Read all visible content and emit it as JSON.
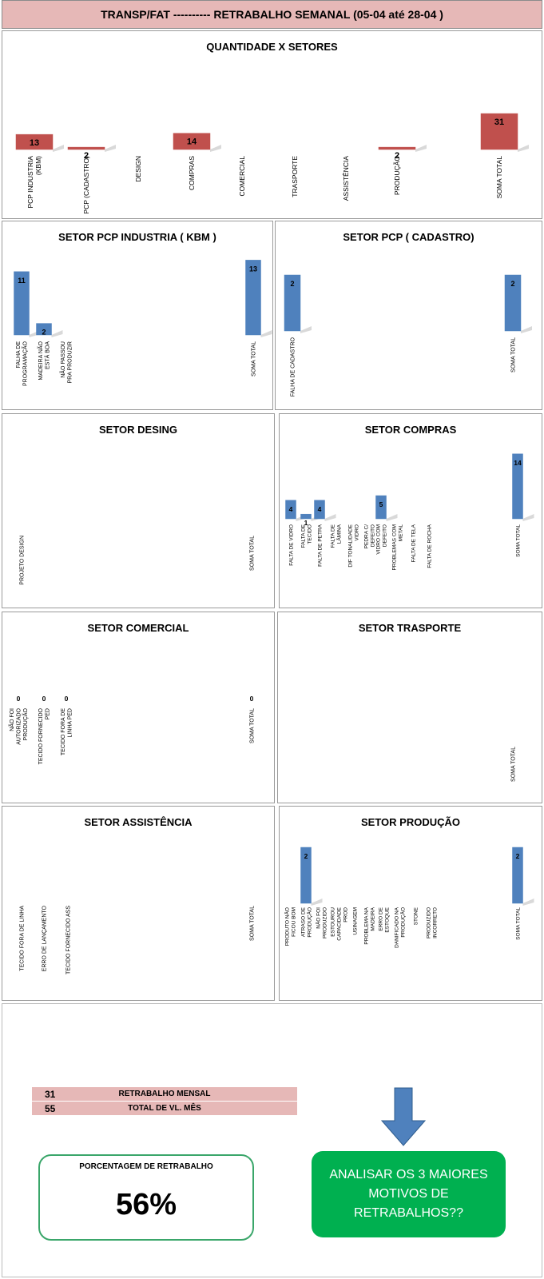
{
  "header": {
    "title": "TRANSP/FAT ----------   RETRABALHO SEMANAL (05-04 até 28-04 )"
  },
  "colors": {
    "red_bar": "#c0504d",
    "blue_bar": "#4f81bd",
    "header_bg": "#e6b8b7",
    "green_box": "#00b050",
    "arrow": "#4f81bd"
  },
  "chart_data": [
    {
      "type": "bar",
      "title": "QUANTIDADE X SETORES",
      "categories": [
        "PCP INDUSTRIA (KBM)",
        "PCP (CADASTRO)",
        "DESIGN",
        "COMPRAS",
        "COMERCIAL",
        "TRASPORTE",
        "ASSISTÊNCIA",
        "PRODUÇÃO",
        "SOMA TOTAL"
      ],
      "values": [
        13,
        2,
        null,
        14,
        null,
        null,
        null,
        2,
        31
      ],
      "color": "#c0504d"
    },
    {
      "type": "bar",
      "title": "SETOR PCP INDUSTRIA ( KBM )",
      "categories": [
        "FALHA DE PROGRAMAÇÃO",
        "MADEIRA NÃO ESTÁ BOA",
        "NÃO PASSOU PRA PRODUZIR",
        "SOMA TOTAL"
      ],
      "values": [
        11,
        2,
        null,
        13
      ],
      "color": "#4f81bd"
    },
    {
      "type": "bar",
      "title": "SETOR PCP ( CADASTRO)",
      "categories": [
        "FALHA DE CADASTRO",
        "SOMA TOTAL"
      ],
      "values": [
        2,
        2
      ],
      "color": "#4f81bd"
    },
    {
      "type": "bar",
      "title": "SETOR DESING",
      "categories": [
        "PROJETO DESIGN",
        "SOMA TOTAL"
      ],
      "values": [
        null,
        null
      ],
      "color": "#4f81bd"
    },
    {
      "type": "bar",
      "title": "SETOR COMPRAS",
      "categories": [
        "FALTA DE VIDRO",
        "FALTA DE TECIDO",
        "FALTA DE PETRA",
        "FALTA DE LÂMINA",
        "DIF TONALIDADE VIDRO",
        "PEDRA C/ DEFEITO",
        "VIDRO COM DEFEITO",
        "PROBLEMAS COM METAL",
        "FALTA DE TELA",
        "FALTA DE ROCHA",
        "SOMA TOTAL"
      ],
      "values": [
        4,
        1,
        4,
        null,
        null,
        null,
        5,
        null,
        null,
        null,
        14
      ],
      "color": "#4f81bd"
    },
    {
      "type": "bar",
      "title": "SETOR COMERCIAL",
      "categories": [
        "NÃO FOI AUTORIZADO PRODUÇÃO",
        "TECIDO FORNECIDO PED",
        "TECIDO FORA DE LINHA PED",
        "SOMA TOTAL"
      ],
      "values": [
        0,
        0,
        0,
        0
      ],
      "color": "#4f81bd"
    },
    {
      "type": "bar",
      "title": "SETOR TRASPORTE",
      "categories": [
        "SOMA TOTAL"
      ],
      "values": [
        null
      ],
      "color": "#4f81bd"
    },
    {
      "type": "bar",
      "title": "SETOR ASSISTÊNCIA",
      "categories": [
        "TECIDO FORA DE LINHA",
        "ERRO DE LANÇAMENTO",
        "TECIDO FORNECIDO ASS",
        "SOMA TOTAL"
      ],
      "values": [
        null,
        null,
        null,
        null
      ],
      "color": "#4f81bd"
    },
    {
      "type": "bar",
      "title": "SETOR PRODUÇÃO",
      "categories": [
        "PRODUTO NÃO FICOU BOM",
        "ATRASO DE PRODUÇÃO",
        "NÃO FOI PRODUZIDO",
        "ESTOUROU CAPACIDADE PROD",
        "USINAGEM",
        "PROBLEMA NA MADEIRA",
        "ERRO DE ESTOQUE",
        "DANIFICADO NA PRODUÇÃO",
        "STONE",
        "PRODUZIDO INCORRETO",
        "SOMA TOTAL"
      ],
      "values": [
        null,
        2,
        null,
        null,
        null,
        null,
        null,
        null,
        null,
        null,
        2
      ],
      "color": "#4f81bd"
    }
  ],
  "summary": {
    "rows": [
      {
        "value": "31",
        "label": "RETRABALHO MENSAL"
      },
      {
        "value": "55",
        "label": "TOTAL DE VL. MÊS"
      }
    ],
    "percent_title": "PORCENTAGEM DE RETRABALHO",
    "percent_value": "56%",
    "action_text": "ANALISAR OS 3 MAIORES MOTIVOS DE RETRABALHOS??"
  }
}
